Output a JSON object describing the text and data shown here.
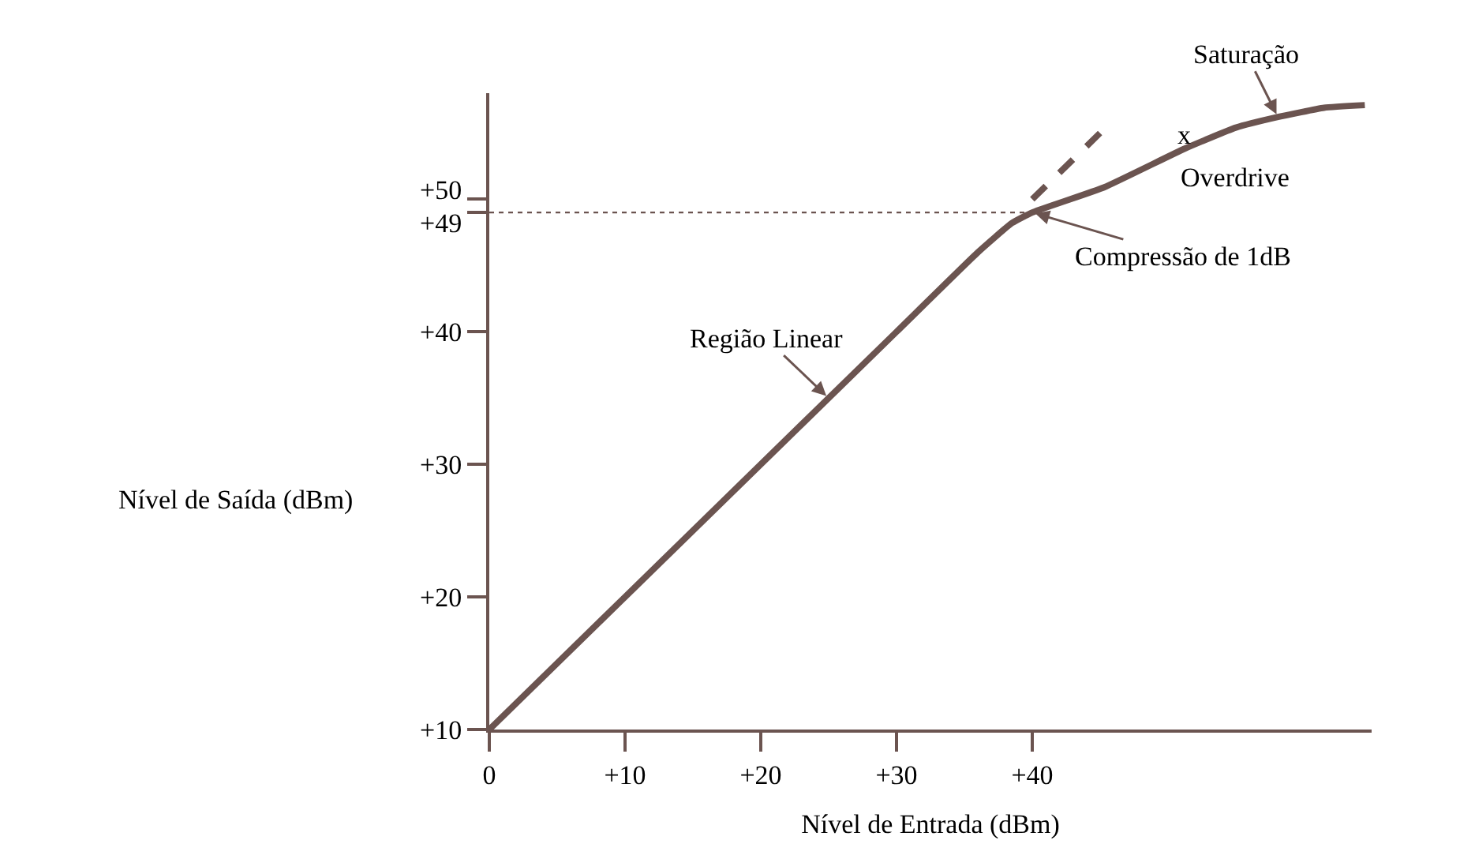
{
  "chart_data": {
    "type": "line",
    "xlabel": "Nível de Entrada (dBm)",
    "ylabel": "Nível de Saída (dBm)",
    "xlim": [
      0,
      65
    ],
    "ylim": [
      10,
      58
    ],
    "xticks": [
      0,
      {
        "value": 10,
        "label": "+10"
      },
      {
        "value": 20,
        "label": "+20"
      },
      {
        "value": 30,
        "label": "+30"
      },
      {
        "value": 40,
        "label": "+40"
      }
    ],
    "yticks": [
      {
        "value": 10,
        "label": "+10"
      },
      {
        "value": 20,
        "label": "+20"
      },
      {
        "value": 30,
        "label": "+30"
      },
      {
        "value": 40,
        "label": "+40"
      },
      {
        "value": 49,
        "label": "+49"
      },
      {
        "value": 50,
        "label": "+50"
      }
    ],
    "series": [
      {
        "color": "#6b5450",
        "x": [
          0,
          10,
          20,
          30,
          36,
          38.5,
          40,
          45.3,
          51.2,
          55,
          58.1,
          61.5,
          64.5
        ],
        "values": [
          10,
          20,
          30,
          40,
          46,
          48.2,
          49,
          50.9,
          53.8,
          55.4,
          56.2,
          56.9,
          57.1
        ]
      },
      {
        "color": "#6b5450",
        "line_style": "dashed",
        "x": [
          40,
          45.3
        ],
        "values": [
          50,
          55.3
        ]
      }
    ],
    "ref_lines": [
      {
        "axis": "y",
        "value": 49,
        "color": "#6b5450",
        "line_style": "dotted"
      }
    ],
    "annotations": [
      {
        "text": "Saturação",
        "x": 58.1,
        "y": 56.2
      },
      {
        "text": "x",
        "x": 51.2,
        "y": 53.8
      },
      {
        "text": "Overdrive",
        "x": 51.2,
        "y": 53.8
      },
      {
        "text": "Compressão de 1dB",
        "x": 40,
        "y": 49
      },
      {
        "text": "Região Linear",
        "x": 25,
        "y": 35
      }
    ],
    "grid": false
  }
}
